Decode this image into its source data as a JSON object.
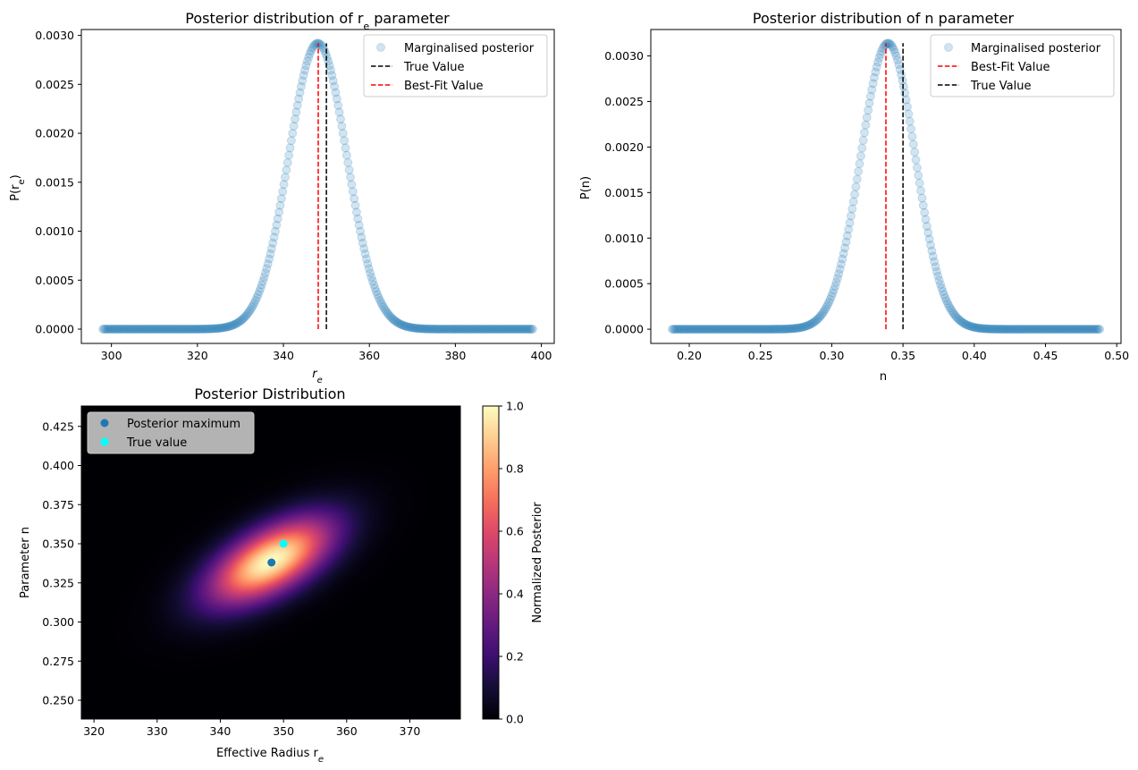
{
  "chart_data": [
    {
      "type": "scatter",
      "title_main": "Posterior distribution of r",
      "title_sub": "e",
      "title_tail": " parameter",
      "xlabel_main": "r",
      "xlabel_sub": "e",
      "ylabel_main": "P(r",
      "ylabel_sub": "e",
      "ylabel_tail": ")",
      "xlim": [
        293,
        403
      ],
      "ylim": [
        -0.000146,
        0.00306
      ],
      "xticks": [
        300,
        320,
        340,
        360,
        380,
        400
      ],
      "yticks": [
        0.0,
        0.0005,
        0.001,
        0.0015,
        0.002,
        0.0025,
        0.003
      ],
      "ytick_labels": [
        "0.0000",
        "0.0005",
        "0.0010",
        "0.0015",
        "0.0020",
        "0.0025",
        "0.0030"
      ],
      "series": [
        {
          "name": "Marginalised posterior",
          "kind": "gaussian_points",
          "mean": 348.0,
          "sigma": 6.75,
          "peak": 0.00292,
          "x_range": [
            298,
            398
          ],
          "n_points": 350,
          "color": "#1f77b4"
        }
      ],
      "lines": [
        {
          "name": "True Value",
          "x": 350,
          "y_top": 0.00292,
          "color": "#000000"
        },
        {
          "name": "Best-Fit Value",
          "x": 348.1,
          "y_top": 0.00292,
          "color": "#ff0000"
        }
      ],
      "legend": "top-right"
    },
    {
      "type": "scatter",
      "title": "Posterior distribution of n parameter",
      "xlabel": "n",
      "ylabel": "P(n)",
      "xlim": [
        0.173,
        0.503
      ],
      "ylim": [
        -0.000156,
        0.00329
      ],
      "xticks": [
        0.2,
        0.25,
        0.3,
        0.35,
        0.4,
        0.45,
        0.5
      ],
      "xtick_labels": [
        "0.20",
        "0.25",
        "0.30",
        "0.35",
        "0.40",
        "0.45",
        "0.50"
      ],
      "yticks": [
        0.0,
        0.0005,
        0.001,
        0.0015,
        0.002,
        0.0025,
        0.003
      ],
      "ytick_labels": [
        "0.0000",
        "0.0005",
        "0.0010",
        "0.0015",
        "0.0020",
        "0.0025",
        "0.0030"
      ],
      "series": [
        {
          "name": "Marginalised posterior",
          "kind": "gaussian_points",
          "mean": 0.3395,
          "sigma": 0.0191,
          "peak": 0.00314,
          "x_range": [
            0.188,
            0.488
          ],
          "n_points": 350,
          "color": "#1f77b4"
        }
      ],
      "lines": [
        {
          "name": "Best-Fit Value",
          "x": 0.338,
          "y_top": 0.00314,
          "color": "#ff0000"
        },
        {
          "name": "True Value",
          "x": 0.35,
          "y_top": 0.00314,
          "color": "#000000"
        }
      ],
      "legend": "top-right"
    },
    {
      "type": "heatmap",
      "title": "Posterior Distribution",
      "xlabel_main": "Effective Radius r",
      "xlabel_sub": "e",
      "ylabel_main": "Parameter n",
      "xlim": [
        318,
        378
      ],
      "ylim": [
        0.238,
        0.438
      ],
      "xticks": [
        320,
        330,
        340,
        350,
        360,
        370
      ],
      "yticks": [
        0.25,
        0.275,
        0.3,
        0.325,
        0.35,
        0.375,
        0.4,
        0.425
      ],
      "ytick_labels": [
        "0.250",
        "0.275",
        "0.300",
        "0.325",
        "0.350",
        "0.375",
        "0.400",
        "0.425"
      ],
      "density": {
        "mean_x": 348.0,
        "mean_y": 0.339,
        "sigma_x": 6.75,
        "sigma_y": 0.0191,
        "correlation": 0.6
      },
      "colormap": "magma",
      "points": [
        {
          "name": "Posterior maximum",
          "x": 348.1,
          "y": 0.338,
          "color": "#1f77b4"
        },
        {
          "name": "True value",
          "x": 350,
          "y": 0.35,
          "color": "#00ffff"
        }
      ],
      "colorbar": {
        "label": "Normalized Posterior",
        "range": [
          0.0,
          1.0
        ],
        "ticks": [
          0.0,
          0.2,
          0.4,
          0.6,
          0.8,
          1.0
        ],
        "tick_labels": [
          "0.0",
          "0.2",
          "0.4",
          "0.6",
          "0.8",
          "1.0"
        ]
      },
      "legend": "top-left"
    }
  ]
}
